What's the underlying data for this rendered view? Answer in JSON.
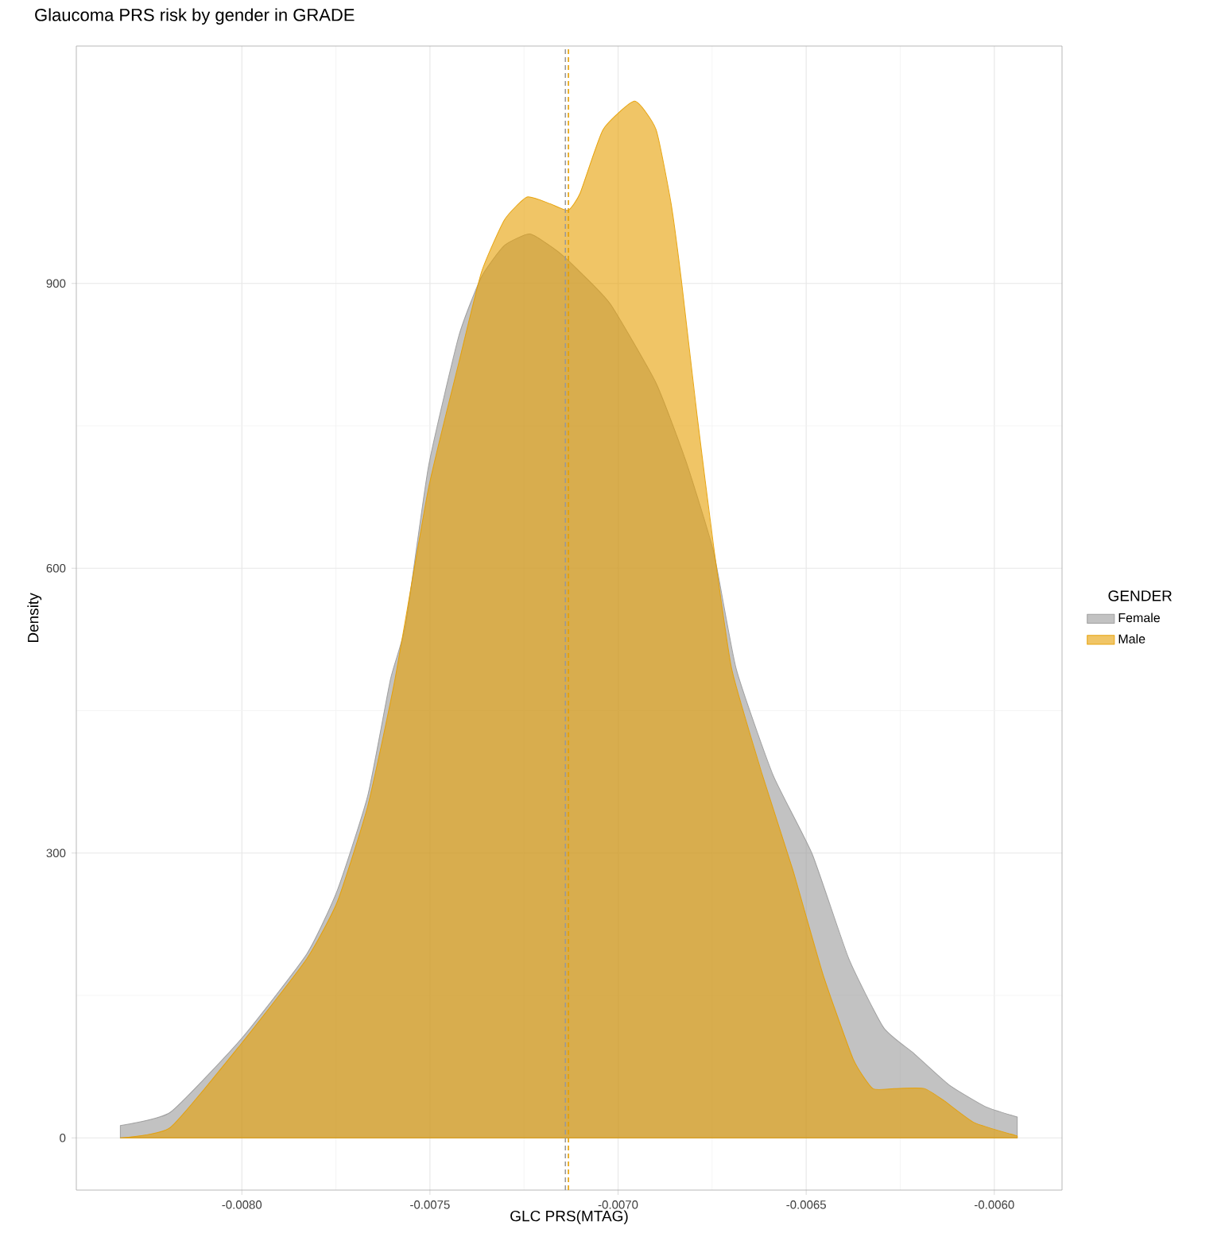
{
  "chart_data": {
    "type": "area",
    "title": "Glaucoma PRS risk by gender in GRADE",
    "xlabel": "GLC PRS(MTAG)",
    "ylabel": "Density",
    "legend_title": "GENDER",
    "series": [
      {
        "name": "Female",
        "color": "#999999",
        "x": [
          -0.008323,
          -0.00819,
          -0.008,
          -0.007827,
          -0.007746,
          -0.007665,
          -0.007605,
          -0.007565,
          -0.007504,
          -0.007423,
          -0.007363,
          -0.007302,
          -0.007234,
          -0.007161,
          -0.007101,
          -0.00702,
          -0.006899,
          -0.006819,
          -0.006746,
          -0.006686,
          -0.006589,
          -0.006484,
          -0.006387,
          -0.006294,
          -0.006214,
          -0.006121,
          -0.006024,
          -0.005939
        ],
        "values": [
          13,
          27,
          105,
          194,
          261,
          361,
          483,
          540,
          707,
          845,
          907,
          940,
          952,
          934,
          912,
          878,
          795,
          712,
          617,
          494,
          383,
          299,
          189,
          116,
          89,
          56,
          33,
          22
        ]
      },
      {
        "name": "Male",
        "color": "#E69F00",
        "x": [
          -0.008323,
          -0.00819,
          -0.008,
          -0.007827,
          -0.007746,
          -0.007665,
          -0.007593,
          -0.007504,
          -0.007423,
          -0.007363,
          -0.007302,
          -0.007242,
          -0.007181,
          -0.007133,
          -0.007101,
          -0.00704,
          -0.006956,
          -0.006899,
          -0.006859,
          -0.006831,
          -0.00679,
          -0.006746,
          -0.006698,
          -0.006617,
          -0.006536,
          -0.006456,
          -0.006375,
          -0.006323,
          -0.006266,
          -0.006186,
          -0.006133,
          -0.006053,
          -0.005939
        ],
        "values": [
          0,
          11,
          100,
          189,
          249,
          350,
          483,
          684,
          817,
          912,
          967,
          991,
          984,
          977,
          995,
          1062,
          1092,
          1062,
          984,
          901,
          761,
          623,
          494,
          383,
          283,
          173,
          83,
          52,
          52,
          52,
          39,
          16,
          2
        ]
      }
    ],
    "ref_lines": [
      {
        "axis": "x",
        "value": -0.00714,
        "color": "#999999",
        "line_style": "dashed"
      },
      {
        "axis": "x",
        "value": -0.007132,
        "color": "#E69F00",
        "line_style": "dashed"
      }
    ],
    "xlim": [
      -0.00844,
      -0.00582
    ],
    "ylim": [
      -55,
      1150
    ],
    "xticks": [
      {
        "value": -0.008,
        "label": "-0.0080"
      },
      {
        "value": -0.0075,
        "label": "-0.0075"
      },
      {
        "value": -0.007,
        "label": "-0.0070"
      },
      {
        "value": -0.0065,
        "label": "-0.0065"
      },
      {
        "value": -0.006,
        "label": "-0.0060"
      }
    ],
    "yticks": [
      0,
      300,
      600,
      900
    ],
    "grid": true,
    "legend": "right"
  }
}
